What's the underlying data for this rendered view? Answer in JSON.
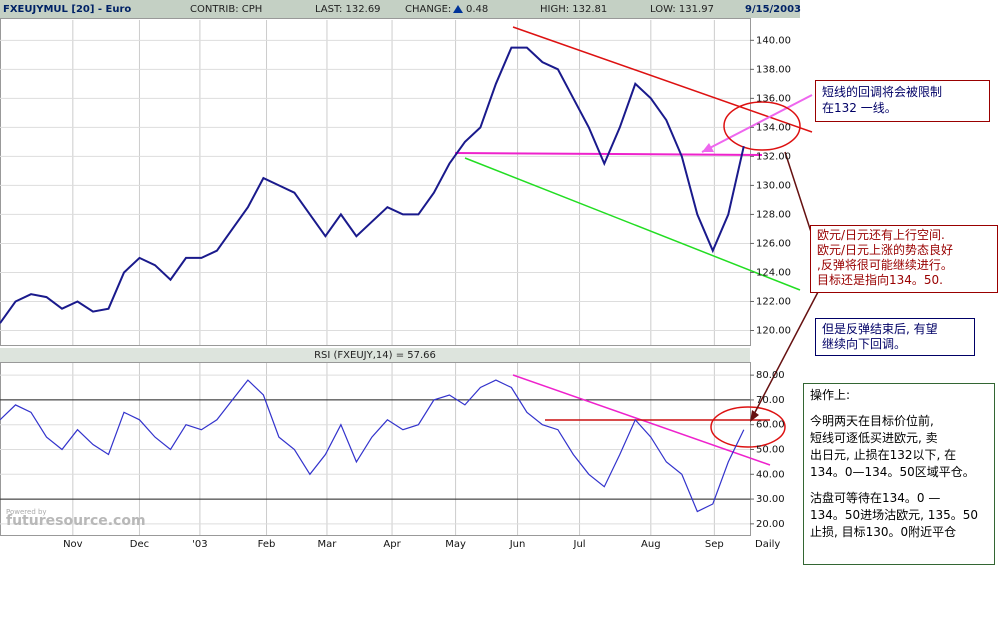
{
  "header": {
    "symbol": "FXEUJYMUL [20] - Euro",
    "contrib": "CONTRIB: CPH",
    "last": "LAST: 132.69",
    "change_label": "CHANGE:",
    "change": "0.48",
    "high": "HIGH: 132.81",
    "low": "LOW: 131.97",
    "date": "9/15/2003"
  },
  "chart_data": [
    {
      "type": "line",
      "name": "price",
      "color": "#1a1a8c",
      "x": [
        0,
        1,
        2,
        3,
        4,
        5,
        6,
        7,
        8,
        9,
        10,
        11,
        12,
        13,
        14,
        15,
        16,
        17,
        18,
        19,
        20,
        21,
        22,
        23,
        24,
        25,
        26,
        27,
        28,
        29,
        30,
        31,
        32,
        33,
        34,
        35,
        36,
        37,
        38,
        39,
        40,
        41,
        42,
        43,
        44,
        45,
        46,
        47,
        48
      ],
      "values": [
        120.5,
        122,
        122.5,
        122.3,
        121.5,
        122,
        121.3,
        121.5,
        124,
        125,
        124.5,
        123.5,
        125,
        125,
        125.5,
        127,
        128.5,
        130.5,
        130,
        129.5,
        128,
        126.5,
        128,
        126.5,
        127.5,
        128.5,
        128,
        128,
        129.5,
        131.5,
        133,
        134,
        137,
        139.5,
        139.5,
        138.5,
        138,
        136,
        134,
        131.5,
        134,
        137,
        136,
        134.5,
        132,
        128,
        125.5,
        128,
        132.7
      ],
      "xlim": [
        0,
        48.4
      ],
      "xticks": [
        {
          "value": 4.7,
          "label": "Nov"
        },
        {
          "value": 9,
          "label": "Dec"
        },
        {
          "value": 12.9,
          "label": "'03"
        },
        {
          "value": 17.2,
          "label": "Feb"
        },
        {
          "value": 21.1,
          "label": "Mar"
        },
        {
          "value": 25.3,
          "label": "Apr"
        },
        {
          "value": 29.4,
          "label": "May"
        },
        {
          "value": 33.4,
          "label": "Jun"
        },
        {
          "value": 37.4,
          "label": "Jul"
        },
        {
          "value": 42,
          "label": "Aug"
        },
        {
          "value": 46.1,
          "label": "Sep"
        }
      ],
      "period_label": "Daily",
      "ylim": [
        119,
        141.4
      ],
      "yticks": [
        {
          "value": 120,
          "label": "120.00"
        },
        {
          "value": 122,
          "label": "122.00"
        },
        {
          "value": 124,
          "label": "124.00"
        },
        {
          "value": 126,
          "label": "126.00"
        },
        {
          "value": 128,
          "label": "128.00"
        },
        {
          "value": 130,
          "label": "130.00"
        },
        {
          "value": 132,
          "label": "132.00"
        },
        {
          "value": 134,
          "label": "134.00"
        },
        {
          "value": 136,
          "label": "136.00"
        },
        {
          "value": 138,
          "label": "138.00"
        },
        {
          "value": 140,
          "label": "140.00"
        }
      ],
      "grid": true
    },
    {
      "type": "line",
      "name": "rsi",
      "title": "RSI (FXEUJY,14) = 57.66",
      "color": "#3333cc",
      "x": [
        0,
        1,
        2,
        3,
        4,
        5,
        6,
        7,
        8,
        9,
        10,
        11,
        12,
        13,
        14,
        15,
        16,
        17,
        18,
        19,
        20,
        21,
        22,
        23,
        24,
        25,
        26,
        27,
        28,
        29,
        30,
        31,
        32,
        33,
        34,
        35,
        36,
        37,
        38,
        39,
        40,
        41,
        42,
        43,
        44,
        45,
        46,
        47,
        48
      ],
      "values": [
        62,
        68,
        65,
        55,
        50,
        58,
        52,
        48,
        65,
        62,
        55,
        50,
        60,
        58,
        62,
        70,
        78,
        72,
        55,
        50,
        40,
        48,
        60,
        45,
        55,
        62,
        58,
        60,
        70,
        72,
        68,
        75,
        78,
        75,
        65,
        60,
        58,
        48,
        40,
        35,
        48,
        62,
        55,
        45,
        40,
        25,
        28,
        45,
        58
      ],
      "xlim": [
        0,
        48.4
      ],
      "ylim": [
        15.5,
        84.9
      ],
      "yticks": [
        {
          "value": 20,
          "label": "20.00"
        },
        {
          "value": 30,
          "label": "30.00"
        },
        {
          "value": 40,
          "label": "40.00"
        },
        {
          "value": 50,
          "label": "50.00"
        },
        {
          "value": 60,
          "label": "60.00"
        },
        {
          "value": 70,
          "label": "70.00"
        },
        {
          "value": 80,
          "label": "80.00"
        }
      ],
      "reference_lines": [
        70,
        30
      ],
      "grid": true
    }
  ],
  "watermark": {
    "small": "Powered by",
    "main": "futuresource.com"
  },
  "annotations": [
    {
      "lines": [
        "短线的回调将会被限制",
        "在132 一线。"
      ]
    },
    {
      "lines": [
        "欧元/日元还有上行空间.",
        "欧元/日元上涨的势态良好",
        ",反弹将很可能继续进行。",
        "目标还是指向134。50."
      ]
    },
    {
      "lines": [
        "但是反弹结束后, 有望",
        "继续向下回调。"
      ]
    },
    {
      "lines": [
        "操作上:",
        "今明两天在目标价位前,",
        "短线可逐低买进欧元, 卖",
        "出日元, 止损在132以下, 在",
        "134。0—134。50区域平仓。",
        "沽盘可等待在134。0 —",
        "134。50进场沽欧元, 135。50",
        "止损, 目标130。0附近平仓"
      ]
    }
  ]
}
